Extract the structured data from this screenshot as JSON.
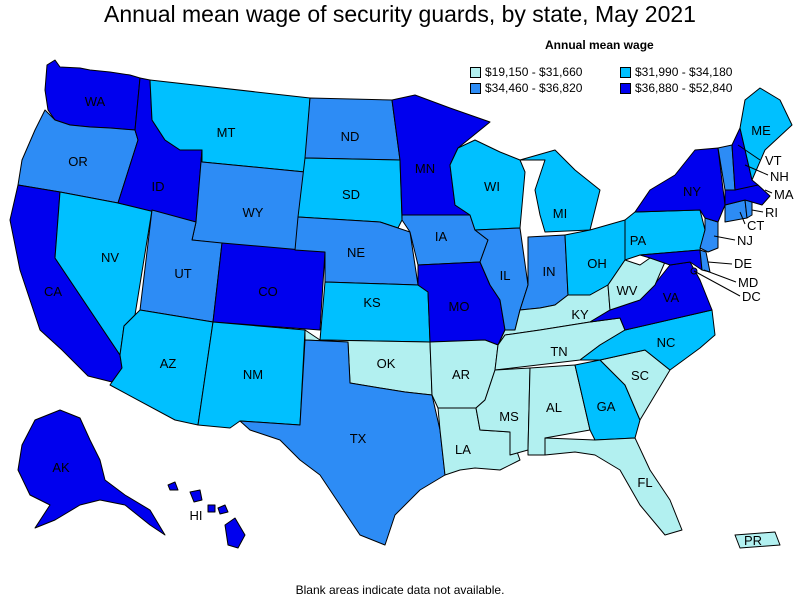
{
  "title": "Annual mean wage of security guards, by state, May 2021",
  "legend": {
    "title": "Annual mean wage",
    "bins": [
      {
        "key": "b1",
        "label": "$19,150 - $31,660",
        "color": "#b2f0f0"
      },
      {
        "key": "b2",
        "label": "$31,990 - $34,180",
        "color": "#00c0ff"
      },
      {
        "key": "b3",
        "label": "$34,460 - $36,820",
        "color": "#2d8cf5"
      },
      {
        "key": "b4",
        "label": "$36,880 - $52,840",
        "color": "#0000ee"
      }
    ]
  },
  "footnote": "Blank areas indicate data not available.",
  "states": {
    "WA": {
      "label": "WA",
      "bin": "b4"
    },
    "OR": {
      "label": "OR",
      "bin": "b3"
    },
    "CA": {
      "label": "CA",
      "bin": "b4"
    },
    "NV": {
      "label": "NV",
      "bin": "b2"
    },
    "ID": {
      "label": "ID",
      "bin": "b4"
    },
    "MT": {
      "label": "MT",
      "bin": "b2"
    },
    "WY": {
      "label": "WY",
      "bin": "b3"
    },
    "UT": {
      "label": "UT",
      "bin": "b3"
    },
    "AZ": {
      "label": "AZ",
      "bin": "b2"
    },
    "CO": {
      "label": "CO",
      "bin": "b4"
    },
    "NM": {
      "label": "NM",
      "bin": "b2"
    },
    "ND": {
      "label": "ND",
      "bin": "b3"
    },
    "SD": {
      "label": "SD",
      "bin": "b2"
    },
    "NE": {
      "label": "NE",
      "bin": "b3"
    },
    "KS": {
      "label": "KS",
      "bin": "b2"
    },
    "OK": {
      "label": "OK",
      "bin": "b1"
    },
    "TX": {
      "label": "TX",
      "bin": "b3"
    },
    "MN": {
      "label": "MN",
      "bin": "b4"
    },
    "IA": {
      "label": "IA",
      "bin": "b3"
    },
    "MO": {
      "label": "MO",
      "bin": "b4"
    },
    "AR": {
      "label": "AR",
      "bin": "b1"
    },
    "LA": {
      "label": "LA",
      "bin": "b1"
    },
    "WI": {
      "label": "WI",
      "bin": "b2"
    },
    "IL": {
      "label": "IL",
      "bin": "b3"
    },
    "MI": {
      "label": "MI",
      "bin": "b2"
    },
    "IN": {
      "label": "IN",
      "bin": "b3"
    },
    "OH": {
      "label": "OH",
      "bin": "b2"
    },
    "KY": {
      "label": "KY",
      "bin": "b1"
    },
    "TN": {
      "label": "TN",
      "bin": "b1"
    },
    "MS": {
      "label": "MS",
      "bin": "b1"
    },
    "AL": {
      "label": "AL",
      "bin": "b1"
    },
    "GA": {
      "label": "GA",
      "bin": "b2"
    },
    "FL": {
      "label": "FL",
      "bin": "b1"
    },
    "SC": {
      "label": "SC",
      "bin": "b1"
    },
    "NC": {
      "label": "NC",
      "bin": "b2"
    },
    "VA": {
      "label": "VA",
      "bin": "b4"
    },
    "WV": {
      "label": "WV",
      "bin": "b1"
    },
    "MD": {
      "label": "MD",
      "bin": "b4"
    },
    "DE": {
      "label": "DE",
      "bin": "b3"
    },
    "DC": {
      "label": "DC",
      "bin": "b4"
    },
    "PA": {
      "label": "PA",
      "bin": "b2"
    },
    "NJ": {
      "label": "NJ",
      "bin": "b3"
    },
    "NY": {
      "label": "NY",
      "bin": "b4"
    },
    "CT": {
      "label": "CT",
      "bin": "b3"
    },
    "RI": {
      "label": "RI",
      "bin": "b3"
    },
    "MA": {
      "label": "MA",
      "bin": "b4"
    },
    "VT": {
      "label": "VT",
      "bin": "b3"
    },
    "NH": {
      "label": "NH",
      "bin": "b4"
    },
    "ME": {
      "label": "ME",
      "bin": "b2"
    },
    "AK": {
      "label": "AK",
      "bin": "b4"
    },
    "HI": {
      "label": "HI",
      "bin": "b4"
    },
    "PR": {
      "label": "PR",
      "bin": "b1"
    }
  }
}
